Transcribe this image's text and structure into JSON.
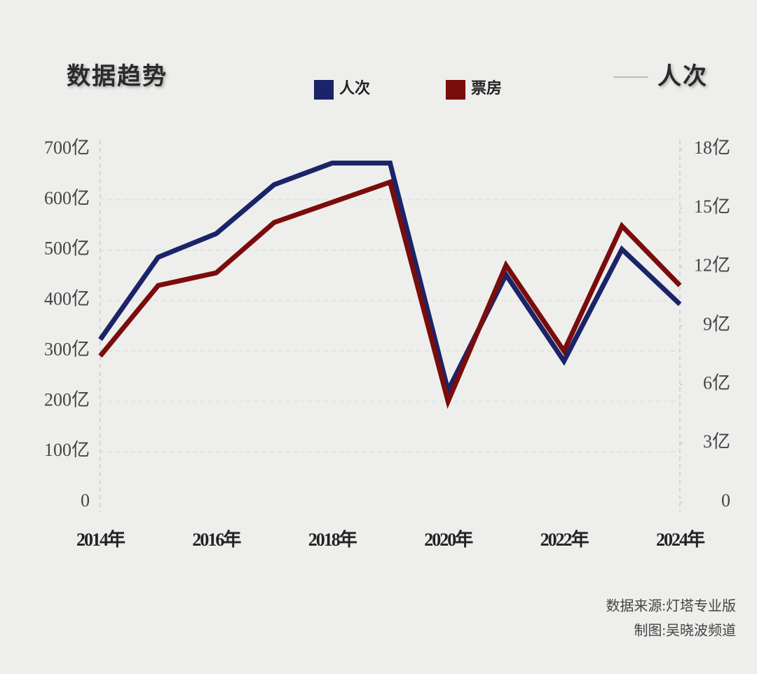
{
  "chart_data": {
    "type": "line",
    "title": "数据趋势",
    "y2_title": "人次",
    "source": "数据来源:灯塔专业版",
    "credit": "制图:吴晓波频道",
    "categories": [
      "2014年",
      null,
      "2016年",
      null,
      "2018年",
      null,
      "2020年",
      null,
      "2022年",
      null,
      "2024年"
    ],
    "series": [
      {
        "name": "人次",
        "color": "#1b2468",
        "axis": "y2",
        "values": [
          8.3,
          12.5,
          13.7,
          16.2,
          17.3,
          17.3,
          5.7,
          11.6,
          7.2,
          12.9,
          10.1
        ]
      },
      {
        "name": "票房",
        "color": "#7a0c0c",
        "values": [
          290,
          430,
          455,
          555,
          595,
          635,
          200,
          470,
          300,
          548,
          430
        ]
      }
    ],
    "ylim": [
      0,
      700
    ],
    "yticks": [
      0,
      {
        "value": 100,
        "label": "100亿"
      },
      {
        "value": 200,
        "label": "200亿"
      },
      {
        "value": 300,
        "label": "300亿"
      },
      {
        "value": 400,
        "label": "400亿"
      },
      {
        "value": 500,
        "label": "500亿"
      },
      {
        "value": 600,
        "label": "600亿"
      },
      {
        "value": 700,
        "label": "700亿"
      }
    ],
    "y2lim": [
      0,
      18
    ],
    "y2ticks": [
      0,
      {
        "value": 3,
        "label": "3亿"
      },
      {
        "value": 6,
        "label": "6亿"
      },
      {
        "value": 9,
        "label": "9亿"
      },
      {
        "value": 12,
        "label": "12亿"
      },
      {
        "value": 15,
        "label": "15亿"
      },
      {
        "value": 18,
        "label": "18亿"
      }
    ],
    "grid": true
  }
}
